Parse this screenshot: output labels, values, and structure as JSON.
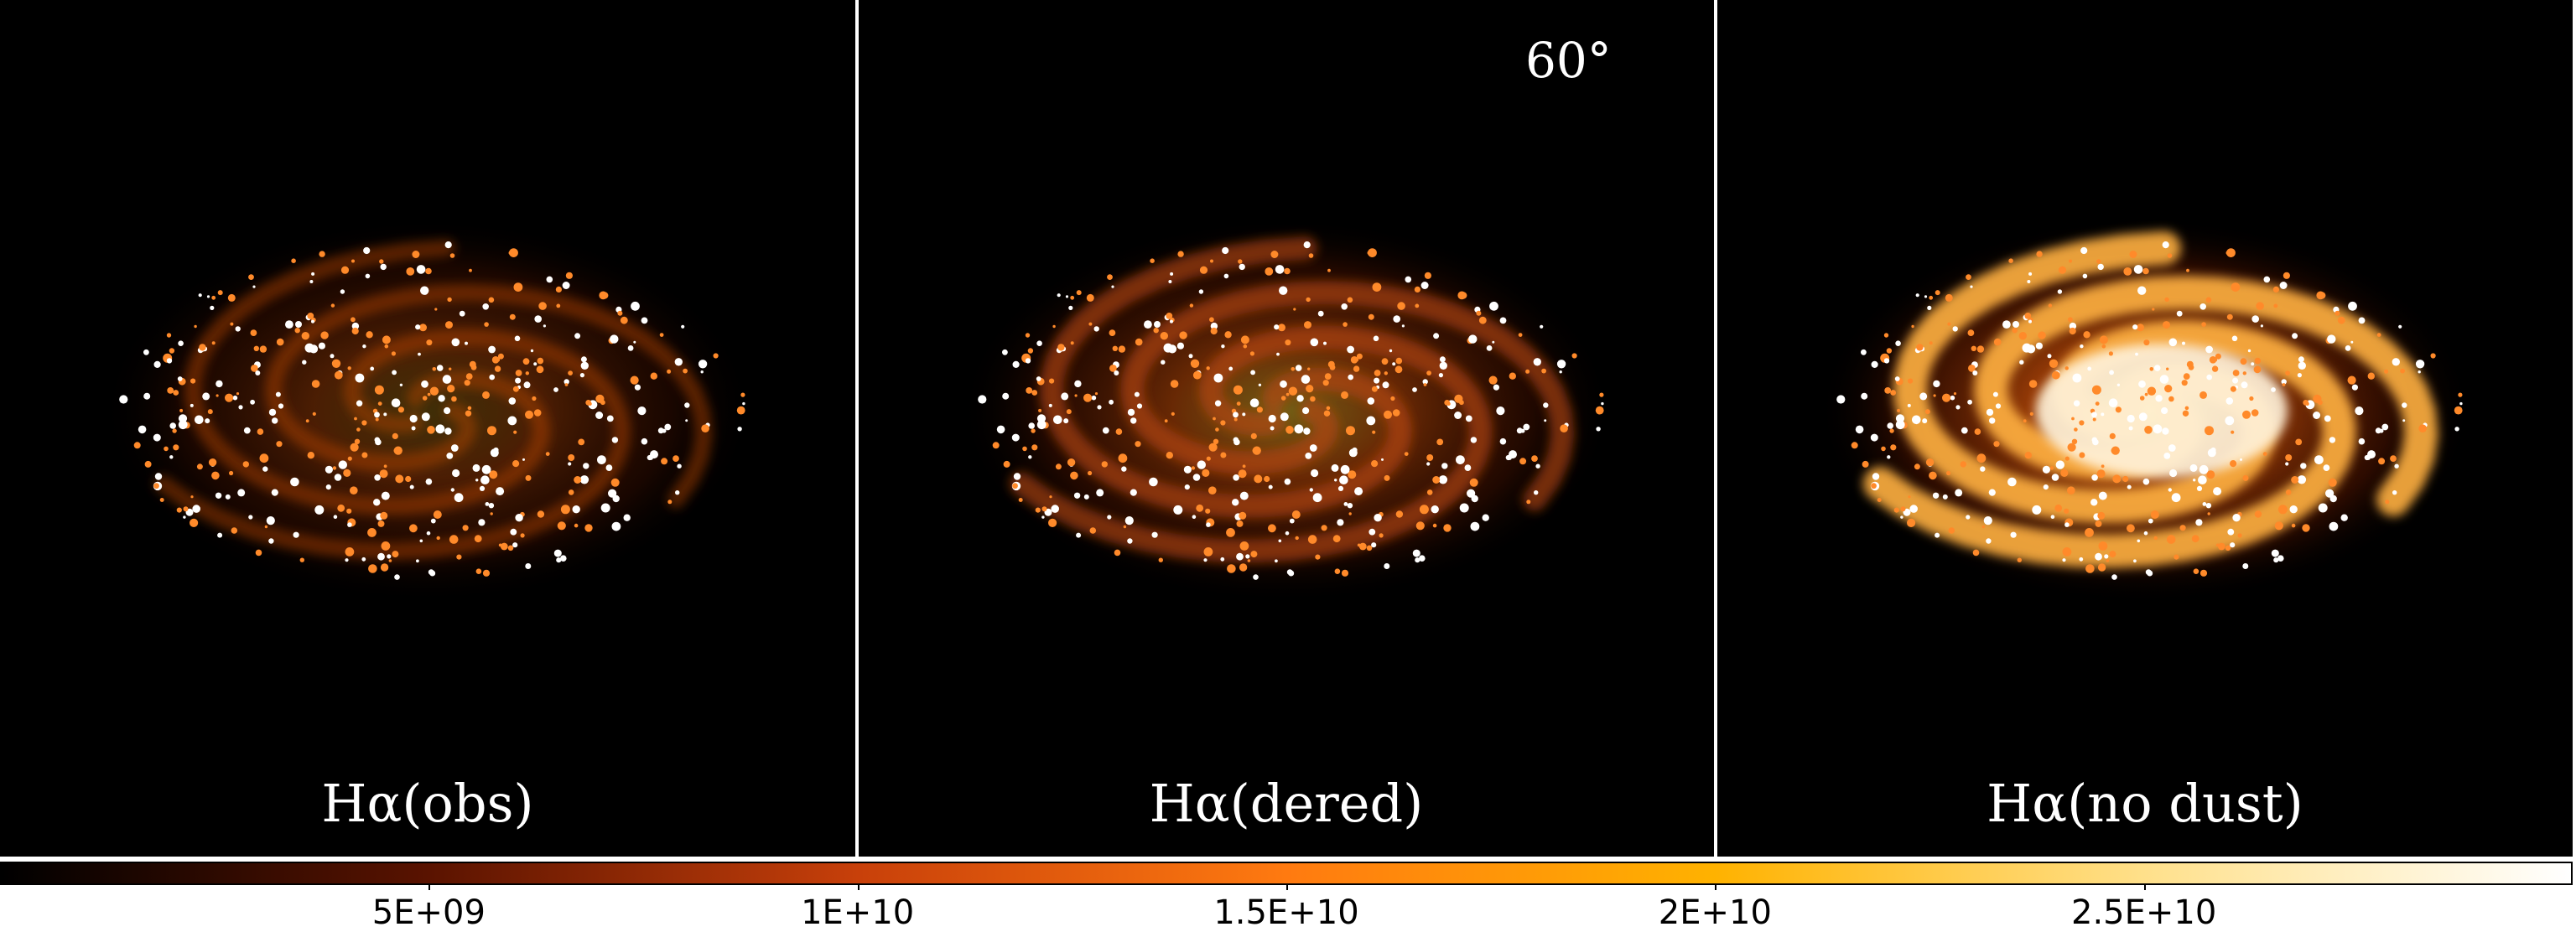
{
  "figure": {
    "angle_label": "60°",
    "panels": [
      {
        "id": "obs",
        "label": "Hα(obs)",
        "brightness": 0.35
      },
      {
        "id": "dered",
        "label": "Hα(dered)",
        "brightness": 0.6
      },
      {
        "id": "nodust",
        "label": "Hα(no dust)",
        "brightness": 1.0
      }
    ],
    "colorbar": {
      "colormap": "gist_heat",
      "colors": [
        "#000000",
        "#5a1300",
        "#c8400a",
        "#ff7a10",
        "#ffb200",
        "#ffe08a",
        "#ffffff"
      ],
      "range": [
        0,
        30000000000.0
      ],
      "ticks": [
        {
          "value": 5000000000.0,
          "label": "5E+09"
        },
        {
          "value": 10000000000.0,
          "label": "1E+10"
        },
        {
          "value": 15000000000.0,
          "label": "1.5E+10"
        },
        {
          "value": 20000000000.0,
          "label": "2E+10"
        },
        {
          "value": 25000000000.0,
          "label": "2.5E+10"
        }
      ]
    }
  }
}
